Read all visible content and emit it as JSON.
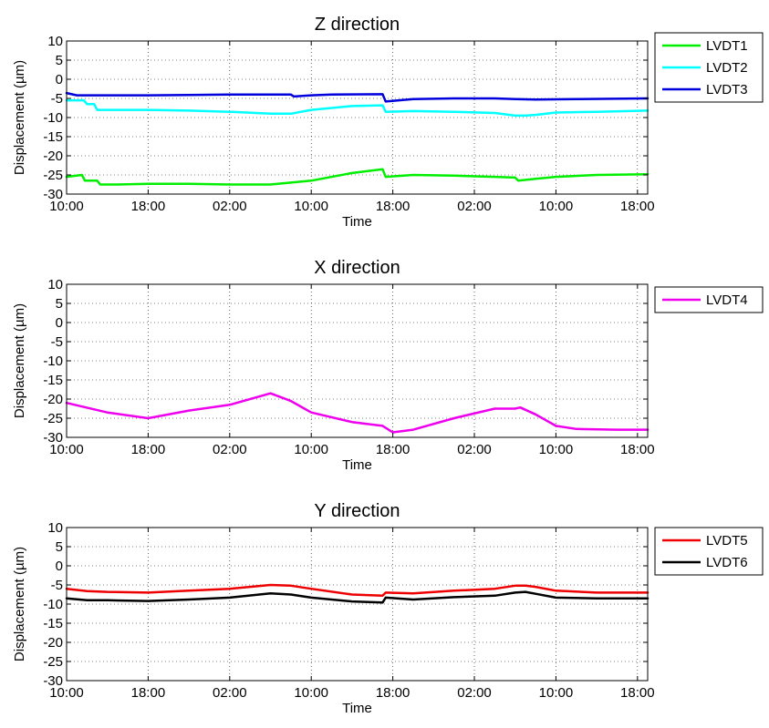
{
  "chart_data": [
    {
      "type": "line",
      "title": "Z direction",
      "xlabel": "Time",
      "ylabel": "Displacement (µm)",
      "x_ticks": [
        "10:00",
        "18:00",
        "02:00",
        "10:00",
        "18:00",
        "02:00",
        "10:00",
        "18:00"
      ],
      "x_unit": "hours",
      "xlim": [
        0,
        57
      ],
      "ylim": [
        -30,
        10
      ],
      "y_ticks": [
        10,
        5,
        0,
        -5,
        -10,
        -15,
        -20,
        -25,
        -30
      ],
      "grid": true,
      "legend_position": "outside-right",
      "series": [
        {
          "name": "LVDT1",
          "color": "#00ee00",
          "x": [
            0,
            1.5,
            1.8,
            3.0,
            3.3,
            5.0,
            8,
            12,
            16,
            20,
            22,
            24,
            28,
            31,
            31.3,
            34,
            38,
            42,
            44,
            44.3,
            46,
            48,
            52,
            57
          ],
          "y": [
            -25.5,
            -25,
            -26.5,
            -26.5,
            -27.5,
            -27.5,
            -27.3,
            -27.3,
            -27.5,
            -27.5,
            -27,
            -26.5,
            -24.5,
            -23.5,
            -25.5,
            -25,
            -25.2,
            -25.5,
            -25.7,
            -26.5,
            -26,
            -25.5,
            -25,
            -24.8
          ]
        },
        {
          "name": "LVDT2",
          "color": "#00ffff",
          "x": [
            0,
            1.7,
            2.0,
            2.7,
            3.0,
            8,
            12,
            16,
            20,
            22,
            24,
            28,
            31,
            31.3,
            34,
            38,
            42,
            44,
            45,
            46,
            48,
            52,
            57
          ],
          "y": [
            -5.5,
            -5.5,
            -6.5,
            -6.5,
            -8,
            -8,
            -8.2,
            -8.5,
            -9,
            -9,
            -8,
            -7,
            -6.8,
            -8.5,
            -8.3,
            -8.5,
            -8.8,
            -9.5,
            -9.5,
            -9.3,
            -8.7,
            -8.5,
            -8.2
          ]
        },
        {
          "name": "LVDT3",
          "color": "#0000dd",
          "x": [
            0,
            1,
            4,
            8,
            12,
            16,
            20,
            22,
            22.3,
            24,
            26,
            31,
            31.3,
            34,
            38,
            42,
            44,
            46,
            50,
            57
          ],
          "y": [
            -3.6,
            -4.2,
            -4.2,
            -4.2,
            -4.1,
            -4.0,
            -4.0,
            -4.0,
            -4.5,
            -4.2,
            -4.0,
            -3.9,
            -5.8,
            -5.2,
            -5.0,
            -5.0,
            -5.2,
            -5.3,
            -5.2,
            -5.0
          ]
        }
      ]
    },
    {
      "type": "line",
      "title": "X direction",
      "xlabel": "Time",
      "ylabel": "Displacement (µm)",
      "x_ticks": [
        "10:00",
        "18:00",
        "02:00",
        "10:00",
        "18:00",
        "02:00",
        "10:00",
        "18:00"
      ],
      "x_unit": "hours",
      "xlim": [
        0,
        57
      ],
      "ylim": [
        -30,
        10
      ],
      "y_ticks": [
        10,
        5,
        0,
        -5,
        -10,
        -15,
        -20,
        -25,
        -30
      ],
      "grid": true,
      "legend_position": "outside-right",
      "series": [
        {
          "name": "LVDT4",
          "color": "#ee00ee",
          "x": [
            0,
            4,
            8,
            12,
            16,
            20,
            22,
            24,
            28,
            31,
            32,
            34,
            38,
            42,
            44,
            44.5,
            46,
            48,
            50,
            54,
            57
          ],
          "y": [
            -21,
            -23.5,
            -25,
            -23,
            -21.5,
            -18.5,
            -20.5,
            -23.5,
            -26,
            -27,
            -28.7,
            -28,
            -25,
            -22.5,
            -22.5,
            -22.2,
            -24,
            -27,
            -27.8,
            -28,
            -28
          ]
        }
      ]
    },
    {
      "type": "line",
      "title": "Y direction",
      "xlabel": "Time",
      "ylabel": "Displacement (µm)",
      "x_ticks": [
        "10:00",
        "18:00",
        "02:00",
        "10:00",
        "18:00",
        "02:00",
        "10:00",
        "18:00"
      ],
      "x_unit": "hours",
      "xlim": [
        0,
        57
      ],
      "ylim": [
        -30,
        10
      ],
      "y_ticks": [
        10,
        5,
        0,
        -5,
        -10,
        -15,
        -20,
        -25,
        -30
      ],
      "grid": true,
      "legend_position": "outside-right",
      "series": [
        {
          "name": "LVDT5",
          "color": "#ee0000",
          "x": [
            0,
            2,
            4,
            8,
            12,
            16,
            20,
            22,
            24,
            28,
            31,
            31.3,
            34,
            38,
            42,
            44,
            45,
            46,
            48,
            52,
            57
          ],
          "y": [
            -6,
            -6.6,
            -6.8,
            -7,
            -6.5,
            -6,
            -5,
            -5.2,
            -6,
            -7.5,
            -7.8,
            -7,
            -7.2,
            -6.5,
            -6,
            -5.2,
            -5.2,
            -5.5,
            -6.5,
            -7,
            -7
          ]
        },
        {
          "name": "LVDT6",
          "color": "#000000",
          "x": [
            0,
            2,
            4,
            8,
            12,
            16,
            20,
            22,
            24,
            28,
            31,
            31.3,
            34,
            38,
            42,
            44,
            45,
            46,
            48,
            52,
            57
          ],
          "y": [
            -8.5,
            -9,
            -9,
            -9.2,
            -8.8,
            -8.3,
            -7.2,
            -7.5,
            -8.3,
            -9.3,
            -9.6,
            -8.3,
            -8.8,
            -8.2,
            -7.8,
            -7,
            -6.8,
            -7.3,
            -8.3,
            -8.5,
            -8.5
          ]
        }
      ]
    }
  ]
}
